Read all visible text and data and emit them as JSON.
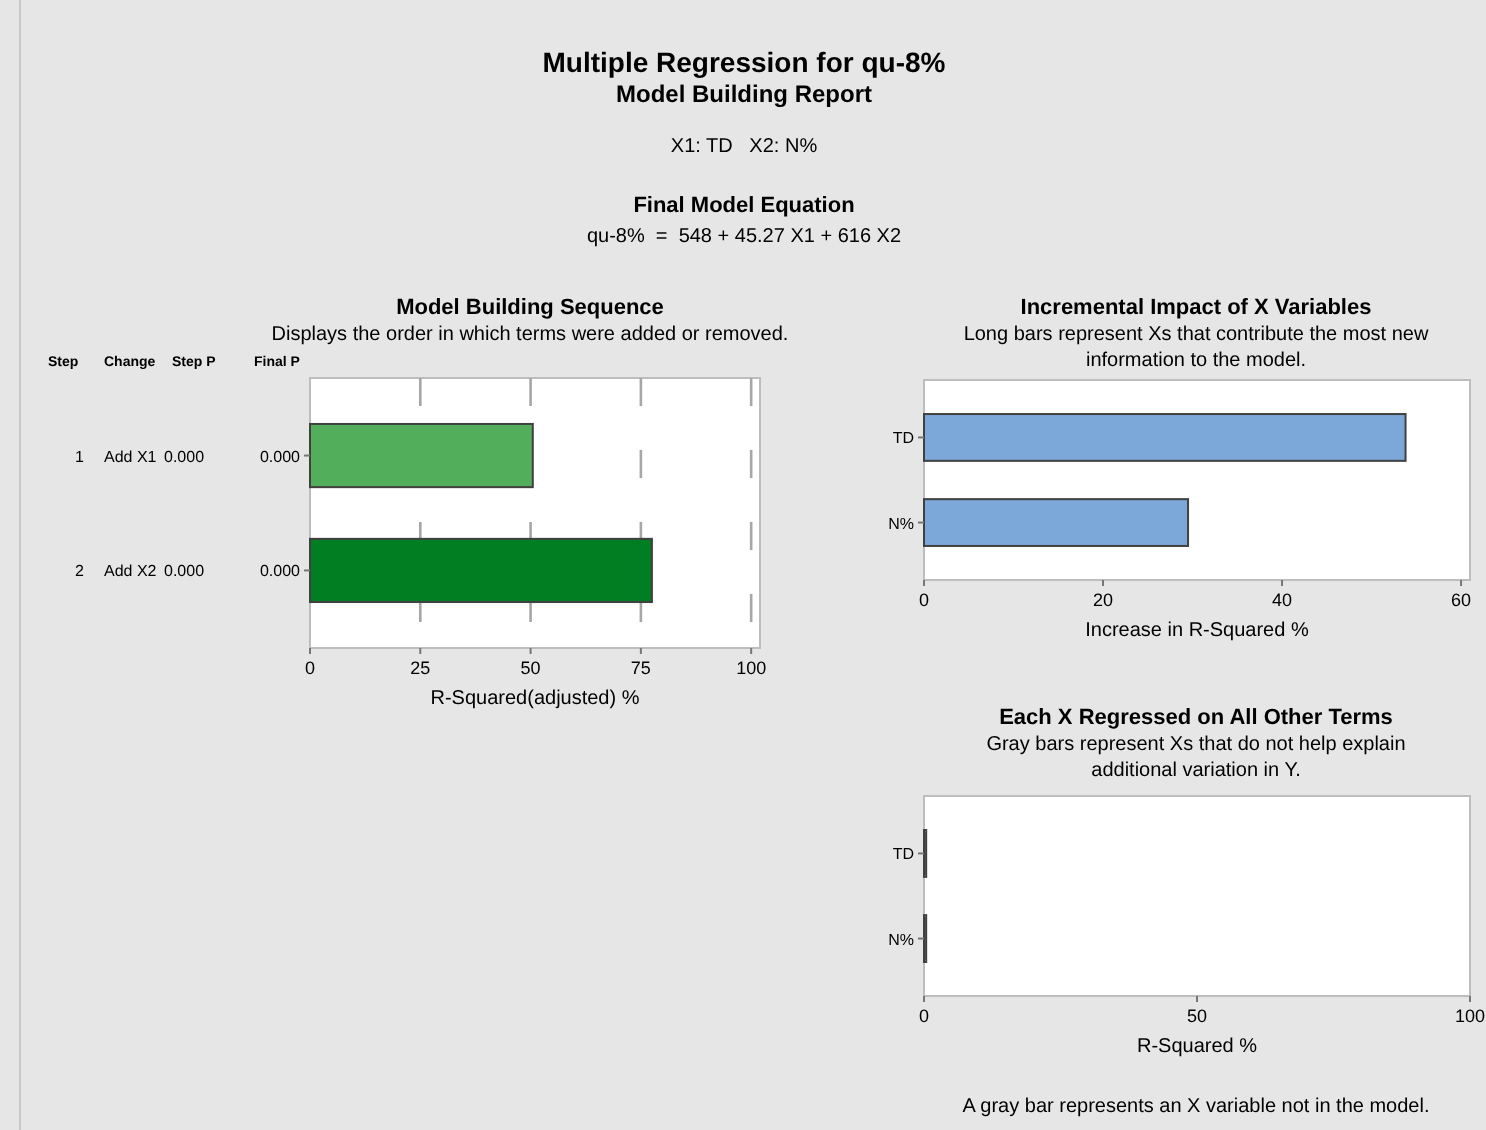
{
  "chart_data": [
    {
      "type": "other",
      "title": "Multiple Regression for qu-8%",
      "subtitle": "Model Building Report",
      "annotations": [
        "X1: TD   X2: N%",
        "Final Model Equation",
        "qu-8%  =  548 + 45.27 X1 + 616 X2"
      ]
    },
    {
      "type": "bar",
      "orientation": "horizontal",
      "title": "Model Building Sequence",
      "subtitle": "Displays the order in which terms were added or removed.",
      "xlabel": "R-Squared(adjusted) %",
      "categories": [
        "0.000",
        "0.000"
      ],
      "values": [
        50.5,
        77.5
      ],
      "colors": [
        "#52ae5a",
        "#017d22"
      ],
      "xlim": [
        0,
        102
      ],
      "xticks": [
        0,
        25,
        50,
        75,
        100
      ],
      "grid": "x",
      "annotations": [
        "Step",
        "Change",
        "Step P",
        "Final P",
        "1",
        "Add X1",
        "0.000",
        "2",
        "Add X2",
        "0.000"
      ]
    },
    {
      "type": "bar",
      "orientation": "horizontal",
      "title": "Incremental Impact of X Variables",
      "subtitle": "Long bars represent Xs that contribute the most new information to the model.",
      "xlabel": "Increase in R-Squared %",
      "categories": [
        "TD",
        "N%"
      ],
      "values": [
        53.8,
        29.5
      ],
      "color": "#7ba7d9",
      "xlim": [
        0,
        61
      ],
      "xticks": [
        0,
        20,
        40,
        60
      ]
    },
    {
      "type": "bar",
      "orientation": "horizontal",
      "title": "Each X Regressed on All Other Terms",
      "subtitle": "Gray bars represent Xs that do not help explain additional variation in Y.",
      "xlabel": "R-Squared %",
      "categories": [
        "TD",
        "N%"
      ],
      "values": [
        0.4,
        0.4
      ],
      "color": "#7f7f7f",
      "xlim": [
        0,
        100
      ],
      "xticks": [
        0,
        50,
        100
      ],
      "annotations": [
        "A gray bar represents an X variable not in the model."
      ]
    }
  ]
}
